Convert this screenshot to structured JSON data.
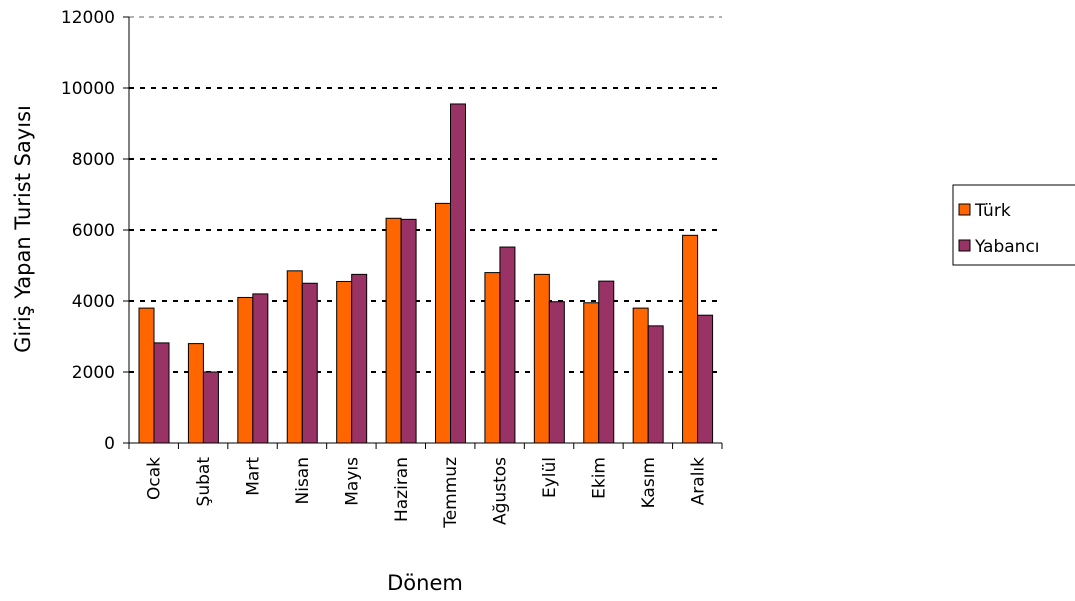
{
  "chart_data": {
    "type": "bar",
    "xlabel": "Dönem",
    "ylabel": "Giriş Yapan Turist Sayısı",
    "ylim": [
      0,
      12000
    ],
    "yticks": [
      0,
      2000,
      4000,
      6000,
      8000,
      10000,
      12000
    ],
    "grid": true,
    "legend_position": "right",
    "categories": [
      "Ocak",
      "Şubat",
      "Mart",
      "Nisan",
      "Mayıs",
      "Haziran",
      "Temmuz",
      "Ağustos",
      "Eylül",
      "Ekim",
      "Kasım",
      "Aralık"
    ],
    "series": [
      {
        "name": "Türk",
        "color": "#ff6600",
        "values": [
          3800,
          2800,
          4100,
          4850,
          4550,
          6330,
          6750,
          4800,
          4750,
          3950,
          3800,
          5850
        ]
      },
      {
        "name": "Yabancı",
        "color": "#993366",
        "values": [
          2820,
          2000,
          4200,
          4500,
          4750,
          6300,
          9550,
          5520,
          3980,
          4560,
          3300,
          3600
        ]
      }
    ]
  }
}
